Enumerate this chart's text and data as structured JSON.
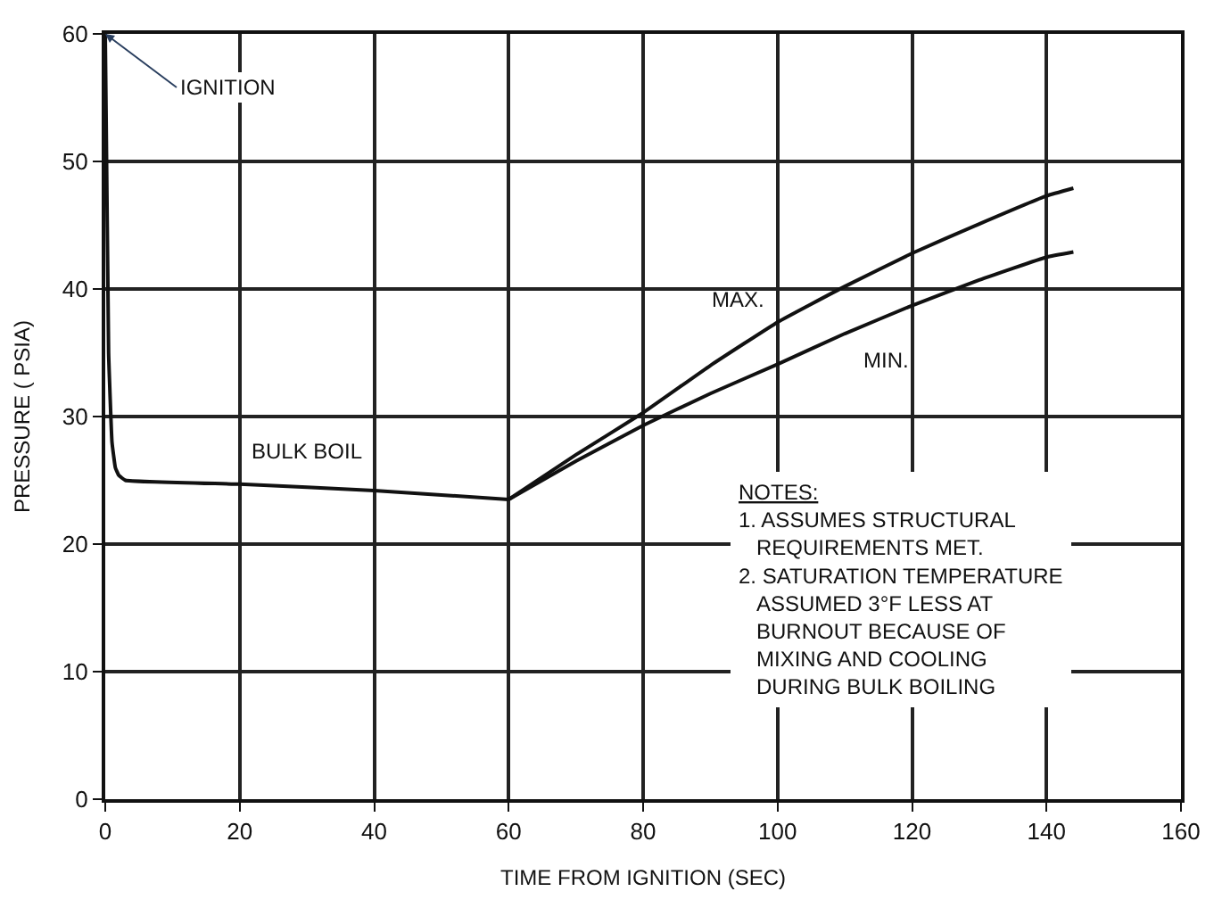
{
  "chart_data": {
    "type": "line",
    "xlabel": "TIME FROM IGNITION (SEC)",
    "ylabel": "PRESSURE ( PSIA)",
    "xlim": [
      0,
      160
    ],
    "xticks": [
      0,
      20,
      40,
      60,
      80,
      100,
      120,
      140,
      160
    ],
    "ylim": [
      0,
      60
    ],
    "yticks": [
      0,
      10,
      20,
      30,
      40,
      50,
      60
    ],
    "grid": true,
    "legend": false,
    "marker": "none",
    "line_style": "solid",
    "series": [
      {
        "color": "#111111",
        "x": [
          0,
          0.5,
          1,
          1.5,
          2,
          3,
          20,
          40,
          60
        ],
        "values": [
          60,
          35,
          28,
          26,
          25.4,
          25,
          24.7,
          24.2,
          23.5
        ]
      },
      {
        "name": "MAX.",
        "color": "#111111",
        "x": [
          60,
          70,
          80,
          90,
          100,
          110,
          120,
          130,
          140,
          144
        ],
        "values": [
          23.5,
          27,
          30.3,
          34,
          37.4,
          40.2,
          42.8,
          45.1,
          47.3,
          47.9
        ]
      },
      {
        "name": "MIN.",
        "color": "#111111",
        "x": [
          60,
          70,
          80,
          90,
          100,
          110,
          120,
          130,
          140,
          144
        ],
        "values": [
          23.5,
          26.5,
          29.3,
          31.8,
          34.1,
          36.5,
          38.7,
          40.7,
          42.5,
          42.9
        ]
      }
    ],
    "annotations": [
      {
        "text": "IGNITION",
        "x": 0,
        "y": 60
      },
      {
        "text": "BULK BOIL",
        "x": 30,
        "y": 24.6
      },
      "NOTES:",
      "1. ASSUMES STRUCTURAL REQUIREMENTS MET.",
      "2. SATURATION TEMPERATURE ASSUMED 3°F LESS AT BURNOUT BECAUSE OF MIXING AND COOLING DURING BULK BOILING"
    ]
  }
}
